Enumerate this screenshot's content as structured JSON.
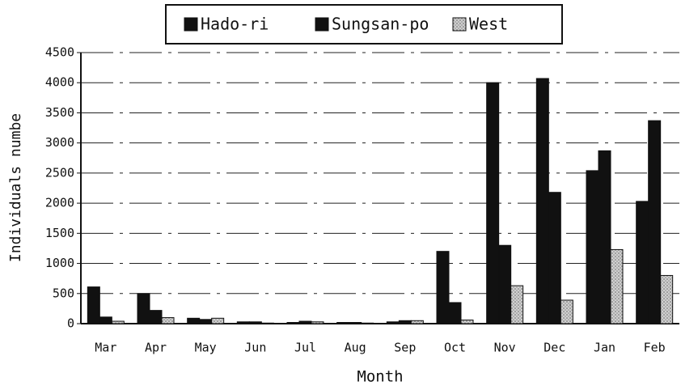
{
  "chart_data": {
    "type": "bar",
    "categories": [
      "Mar",
      "Apr",
      "May",
      "Jun",
      "Jul",
      "Aug",
      "Sep",
      "Oct",
      "Nov",
      "Dec",
      "Jan",
      "Feb"
    ],
    "series": [
      {
        "name": "Hado-ri",
        "color": "#111111",
        "values": [
          610,
          500,
          90,
          30,
          20,
          20,
          30,
          1200,
          4000,
          4070,
          2540,
          2030
        ]
      },
      {
        "name": "Sungsan-po",
        "color": "#111111",
        "values": [
          110,
          220,
          70,
          30,
          40,
          20,
          50,
          350,
          1300,
          2180,
          2870,
          3370
        ]
      },
      {
        "name": "West",
        "color": "#d0d0d0",
        "values": [
          40,
          100,
          90,
          10,
          30,
          10,
          50,
          60,
          630,
          390,
          1230,
          800
        ]
      }
    ],
    "xlabel": "Month",
    "ylabel": "Individuals numbe",
    "ylim": [
      0,
      4500
    ],
    "yticks": [
      0,
      500,
      1000,
      1500,
      2000,
      2500,
      3000,
      3500,
      4000,
      4500
    ],
    "grid": true,
    "legend": "top"
  }
}
